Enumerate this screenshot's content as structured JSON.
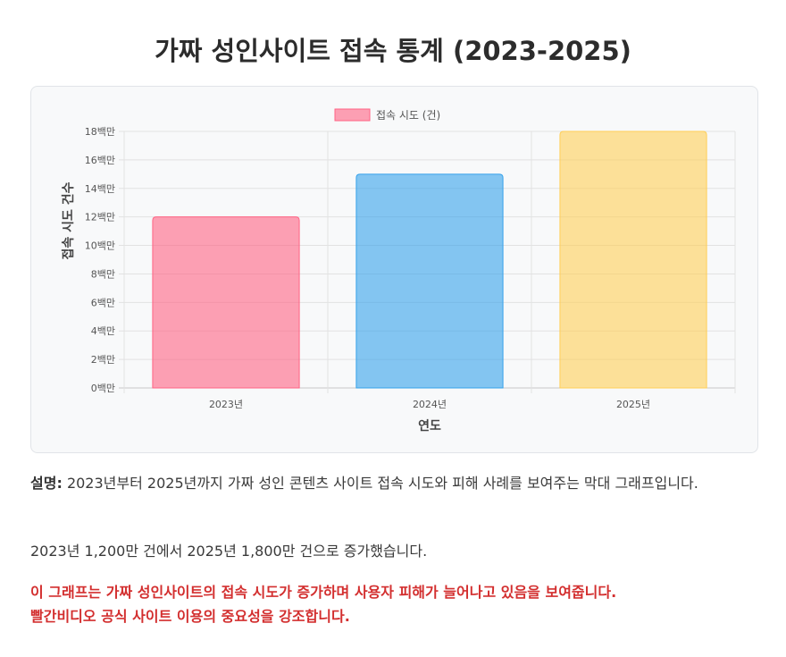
{
  "page": {
    "title": "가짜 성인사이트 접속 통계 (2023-2025)"
  },
  "chart_data": {
    "type": "bar",
    "categories": [
      "2023년",
      "2024년",
      "2025년"
    ],
    "series": [
      {
        "name": "접속 시도 (건)",
        "values": [
          12000000,
          15000000,
          18000000
        ]
      }
    ],
    "bar_colors": [
      "#ff6384",
      "#36a2eb",
      "#ffce56"
    ],
    "bar_fill_opacity": 0.6,
    "xlabel": "연도",
    "ylabel": "접속 시도 건수",
    "ylim": [
      0,
      18000000
    ],
    "ytick_labels": [
      "0백만",
      "2백만",
      "4백만",
      "6백만",
      "8백만",
      "10백만",
      "12백만",
      "14백만",
      "16백만",
      "18백만"
    ],
    "legend_position": "top-center",
    "grid": true
  },
  "description": {
    "label": "설명:",
    "line1": "2023년부터 2025년까지 가짜 성인 콘텐츠 사이트 접속 시도와 피해 사례를 보여주는 막대 그래프입니다.",
    "line2": "2023년 1,200만 건에서 2025년 1,800만 건으로 증가했습니다."
  },
  "warning": {
    "line1": "이 그래프는 가짜 성인사이트의 접속 시도가 증가하며 사용자 피해가 늘어나고 있음을 보여줍니다.",
    "line2": "빨간비디오 공식 사이트 이용의 중요성을 강조합니다."
  }
}
